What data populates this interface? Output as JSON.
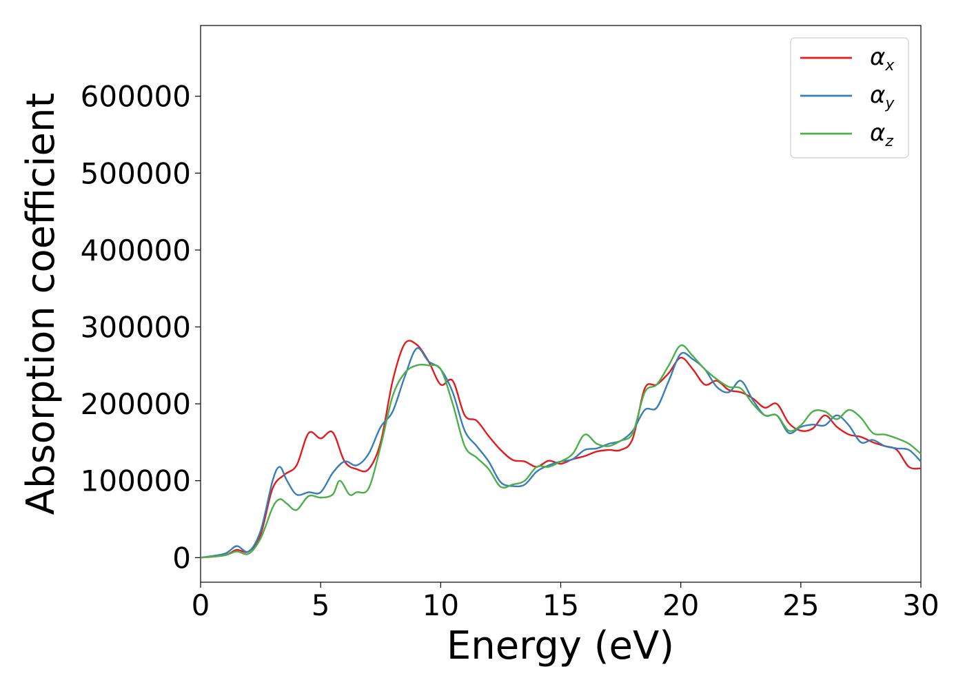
{
  "chart_data": {
    "type": "line",
    "xlabel": "Energy (eV)",
    "ylabel": "Absorption coefficient",
    "xlim": [
      0,
      30
    ],
    "ylim": [
      -32000,
      692000
    ],
    "xticks": [
      "0",
      "5",
      "10",
      "15",
      "20",
      "25",
      "30"
    ],
    "yticks": [
      "0",
      "100000",
      "200000",
      "300000",
      "400000",
      "500000",
      "600000"
    ],
    "grid": false,
    "legend_position": "top-right",
    "series": [
      {
        "name": "αx",
        "legend_base": "α",
        "legend_sub": "x",
        "color": "#e41a1c",
        "x": [
          0,
          1,
          1.5,
          2,
          2.5,
          3,
          3.5,
          4,
          4.5,
          5,
          5.5,
          6,
          6.5,
          7,
          7.5,
          8,
          8.5,
          9,
          9.5,
          10,
          10.5,
          11,
          11.5,
          12,
          12.5,
          13,
          13.5,
          14,
          14.5,
          15,
          15.5,
          16,
          16.5,
          17,
          17.5,
          18,
          18.5,
          19,
          19.5,
          20,
          20.5,
          21,
          21.5,
          22,
          22.5,
          23,
          23.5,
          24,
          24.5,
          25,
          25.5,
          26,
          26.5,
          27,
          27.5,
          28,
          28.5,
          29,
          29.5,
          30
        ],
        "y": [
          0,
          3000,
          10000,
          8000,
          30000,
          90000,
          108000,
          120000,
          162000,
          155000,
          163000,
          125000,
          115000,
          115000,
          150000,
          230000,
          278000,
          277000,
          255000,
          225000,
          230000,
          185000,
          178000,
          158000,
          140000,
          127000,
          125000,
          118000,
          126000,
          122000,
          128000,
          132000,
          138000,
          140000,
          140000,
          155000,
          220000,
          225000,
          240000,
          260000,
          245000,
          225000,
          230000,
          218000,
          215000,
          207000,
          195000,
          200000,
          175000,
          165000,
          168000,
          185000,
          170000,
          160000,
          157000,
          150000,
          145000,
          140000,
          118000,
          116000
        ]
      },
      {
        "name": "αy",
        "legend_base": "α",
        "legend_sub": "y",
        "color": "#377eb8",
        "x": [
          0,
          1,
          1.5,
          2,
          2.5,
          3,
          3.3,
          3.6,
          4,
          4.5,
          5,
          5.5,
          6,
          6.5,
          7,
          7.5,
          8,
          8.5,
          9,
          9.5,
          10,
          10.5,
          11,
          11.5,
          12,
          12.5,
          13,
          13.5,
          14,
          14.5,
          15,
          15.5,
          16,
          16.5,
          17,
          17.5,
          18,
          18.5,
          19,
          19.5,
          20,
          20.5,
          21,
          21.5,
          22,
          22.5,
          23,
          23.5,
          24,
          24.5,
          25,
          25.5,
          26,
          26.5,
          27,
          27.5,
          28,
          28.5,
          29,
          29.5,
          30
        ],
        "y": [
          0,
          5000,
          15000,
          8000,
          35000,
          100000,
          118000,
          100000,
          82000,
          85000,
          85000,
          110000,
          125000,
          120000,
          135000,
          170000,
          190000,
          235000,
          272000,
          255000,
          245000,
          215000,
          165000,
          145000,
          125000,
          98000,
          93000,
          95000,
          112000,
          120000,
          125000,
          128000,
          140000,
          142000,
          148000,
          152000,
          165000,
          192000,
          195000,
          230000,
          265000,
          258000,
          245000,
          222000,
          215000,
          230000,
          205000,
          185000,
          185000,
          162000,
          170000,
          173000,
          172000,
          185000,
          172000,
          150000,
          153000,
          145000,
          142000,
          140000,
          125000
        ]
      },
      {
        "name": "αz",
        "legend_base": "α",
        "legend_sub": "z",
        "color": "#4daf4a",
        "x": [
          0,
          1,
          1.5,
          2,
          2.5,
          3,
          3.3,
          3.6,
          4,
          4.5,
          5,
          5.5,
          5.8,
          6.2,
          6.5,
          7,
          7.5,
          8,
          8.5,
          9,
          9.5,
          10,
          10.5,
          11,
          11.5,
          12,
          12.5,
          13,
          13.5,
          14,
          14.5,
          15,
          15.5,
          16,
          16.5,
          17,
          17.5,
          18,
          18.5,
          19,
          19.5,
          20,
          20.5,
          21,
          21.5,
          22,
          22.5,
          23,
          23.5,
          24,
          24.5,
          25,
          25.5,
          26,
          26.5,
          27,
          27.5,
          28,
          28.5,
          29,
          29.5,
          30
        ],
        "y": [
          0,
          3000,
          8000,
          5000,
          25000,
          65000,
          76000,
          70000,
          62000,
          80000,
          78000,
          82000,
          100000,
          82000,
          85000,
          90000,
          145000,
          210000,
          240000,
          250000,
          250000,
          245000,
          200000,
          145000,
          130000,
          115000,
          92000,
          95000,
          100000,
          118000,
          118000,
          125000,
          135000,
          160000,
          148000,
          145000,
          152000,
          162000,
          215000,
          225000,
          250000,
          276000,
          262000,
          245000,
          232000,
          222000,
          220000,
          200000,
          185000,
          185000,
          165000,
          172000,
          190000,
          190000,
          180000,
          192000,
          182000,
          162000,
          160000,
          155000,
          148000,
          135000
        ]
      }
    ]
  }
}
